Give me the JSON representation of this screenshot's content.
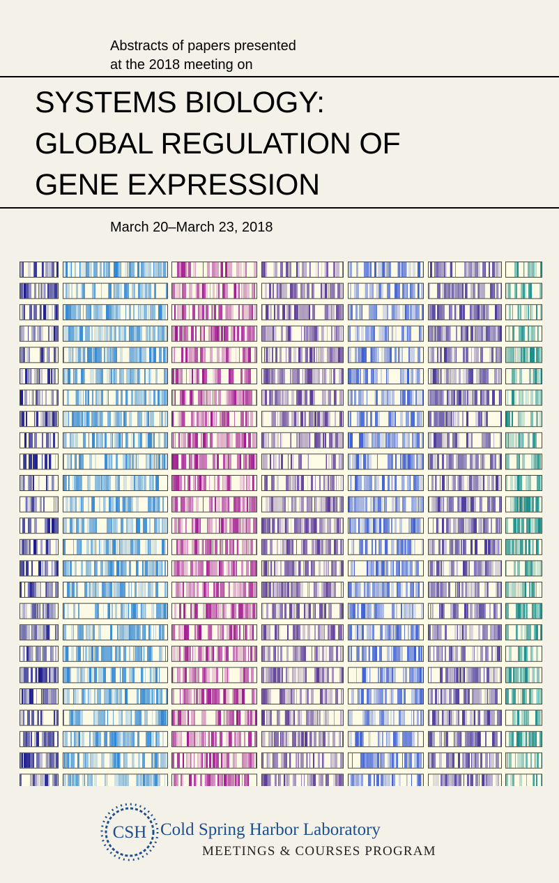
{
  "header": {
    "intro_line1": "Abstracts of papers presented",
    "intro_line2": "at the 2018 meeting on",
    "title_line1": "SYSTEMS BIOLOGY:",
    "title_line2": "GLOBAL REGULATION OF",
    "title_line3": "GENE EXPRESSION",
    "dates": "March 20–March 23, 2018"
  },
  "artwork": {
    "palette": [
      "#1a1a8c",
      "#2e86d4",
      "#a0178f",
      "#5c3a99",
      "#3d5fd6",
      "#4b3a9c",
      "#138a87"
    ],
    "paper_color": "#fdfbe6"
  },
  "logo": {
    "mark_text": "CSH",
    "name": "Cold Spring Harbor Laboratory",
    "subtitle": "MEETINGS & COURSES PROGRAM",
    "colors": {
      "mark": "#1d4f8f",
      "text": "#1d4f8f",
      "subtitle": "#222222"
    }
  }
}
